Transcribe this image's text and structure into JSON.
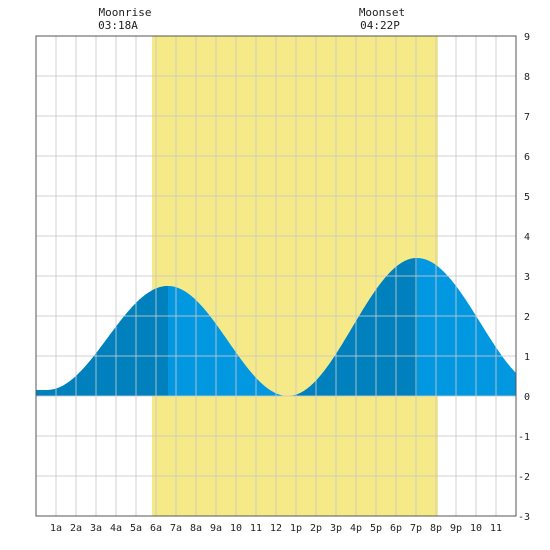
{
  "chart_data": {
    "type": "area",
    "title": "",
    "xlabel": "",
    "ylabel": "",
    "x_unit": "hour of day",
    "xlim": [
      0,
      24
    ],
    "ylim": [
      -3,
      9
    ],
    "y_ticks": [
      -3,
      -2,
      -1,
      0,
      1,
      2,
      3,
      4,
      5,
      6,
      7,
      8,
      9
    ],
    "x_tick_labels": [
      "1a",
      "2a",
      "3a",
      "4a",
      "5a",
      "6a",
      "7a",
      "8a",
      "9a",
      "10",
      "11",
      "12",
      "1p",
      "2p",
      "3p",
      "4p",
      "5p",
      "6p",
      "7p",
      "8p",
      "9p",
      "10",
      "11"
    ],
    "grid": true,
    "daylight_band": [
      5.8,
      20.1
    ],
    "dark_segments": [
      [
        0,
        6.6
      ],
      [
        12.6,
        19.05
      ]
    ],
    "extremes": [
      {
        "type": "low",
        "time": 0.55,
        "height": 0.15
      },
      {
        "type": "high",
        "time": 6.6,
        "height": 2.75
      },
      {
        "type": "low",
        "time": 12.6,
        "height": 0.0
      },
      {
        "type": "high",
        "time": 19.05,
        "height": 3.45
      },
      {
        "type": "low",
        "time": 25.4,
        "height": 0.2
      }
    ],
    "series": [
      {
        "name": "",
        "x": [
          0,
          0.55,
          2,
          4,
          6,
          6.6,
          8,
          10,
          12,
          12.6,
          14,
          16,
          18,
          19.05,
          20,
          22,
          24
        ],
        "values": [
          0.2,
          0.15,
          0.55,
          1.9,
          2.7,
          2.75,
          2.35,
          1.05,
          0.05,
          0.0,
          0.5,
          1.95,
          3.25,
          3.45,
          3.2,
          1.75,
          0.45
        ]
      }
    ]
  },
  "moon": {
    "rise_label": "Moonrise",
    "rise_time": "03:18A",
    "set_label": "Moonset",
    "set_time": "04:22P"
  },
  "colors": {
    "daylight": "#f5ea87",
    "tide_fill": "#0198e1",
    "tide_dark": "#0081bd",
    "grid": "#c8c8c8",
    "frame": "#555555"
  }
}
